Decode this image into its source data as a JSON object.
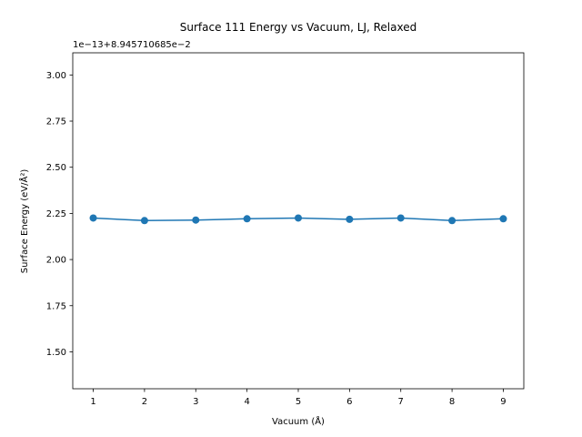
{
  "chart_data": {
    "type": "line",
    "title": "Surface 111 Energy vs Vacuum, LJ, Relaxed",
    "xlabel": "Vacuum (Å)",
    "ylabel": "Surface Energy (eV/Å²)",
    "y_offset_text": "1e−13+8.945710685e−2",
    "x": [
      1,
      2,
      3,
      4,
      5,
      6,
      7,
      8,
      9
    ],
    "series": [
      {
        "values": [
          2.225,
          2.211,
          2.214,
          2.221,
          2.225,
          2.218,
          2.225,
          2.211,
          2.221
        ],
        "color": "#1f77b4",
        "marker": "circle"
      }
    ],
    "xlim": [
      0.6,
      9.4
    ],
    "ylim": [
      1.3,
      3.12
    ],
    "x_ticks": [
      {
        "value": 1,
        "label": "1"
      },
      {
        "value": 2,
        "label": "2"
      },
      {
        "value": 3,
        "label": "3"
      },
      {
        "value": 4,
        "label": "4"
      },
      {
        "value": 5,
        "label": "5"
      },
      {
        "value": 6,
        "label": "6"
      },
      {
        "value": 7,
        "label": "7"
      },
      {
        "value": 8,
        "label": "8"
      },
      {
        "value": 9,
        "label": "9"
      }
    ],
    "y_ticks": [
      {
        "value": 1.5,
        "label": "1.50"
      },
      {
        "value": 1.75,
        "label": "1.75"
      },
      {
        "value": 2.0,
        "label": "2.00"
      },
      {
        "value": 2.25,
        "label": "2.25"
      },
      {
        "value": 2.5,
        "label": "2.50"
      },
      {
        "value": 2.75,
        "label": "2.75"
      },
      {
        "value": 3.0,
        "label": "3.00"
      }
    ],
    "grid": false,
    "legend": false
  }
}
